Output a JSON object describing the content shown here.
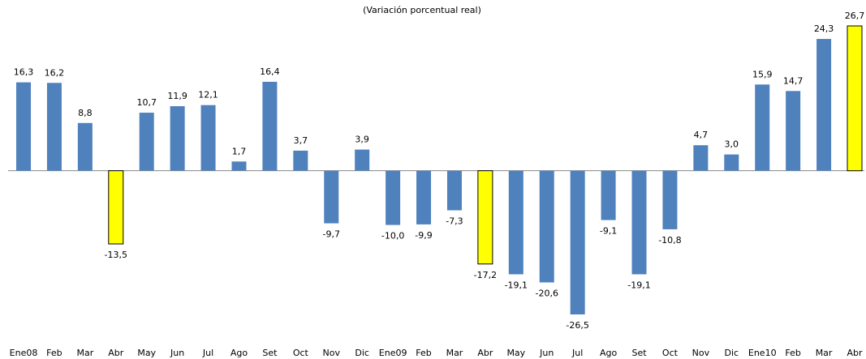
{
  "chart_data": {
    "type": "bar",
    "subtitle": "(Variación porcentual real)",
    "categories": [
      "Ene08",
      "Feb",
      "Mar",
      "Abr",
      "May",
      "Jun",
      "Jul",
      "Ago",
      "Set",
      "Oct",
      "Nov",
      "Dic",
      "Ene09",
      "Feb",
      "Mar",
      "Abr",
      "May",
      "Jun",
      "Jul",
      "Ago",
      "Set",
      "Oct",
      "Nov",
      "Dic",
      "Ene10",
      "Feb",
      "Mar",
      "Abr"
    ],
    "values": [
      16.3,
      16.2,
      8.8,
      -13.5,
      10.7,
      11.9,
      12.1,
      1.7,
      16.4,
      3.7,
      -9.7,
      3.9,
      -10.0,
      -9.9,
      -7.3,
      -17.2,
      -19.1,
      -20.6,
      -26.5,
      -9.1,
      -19.1,
      -10.8,
      4.7,
      3.0,
      15.9,
      14.7,
      24.3,
      26.7
    ],
    "value_labels": [
      "16,3",
      "16,2",
      "8,8",
      "-13,5",
      "10,7",
      "11,9",
      "12,1",
      "1,7",
      "16,4",
      "3,7",
      "-9,7",
      "3,9",
      "-10,0",
      "-9,9",
      "-7,3",
      "-17,2",
      "-19,1",
      "-20,6",
      "-26,5",
      "-9,1",
      "-19,1",
      "-10,8",
      "4,7",
      "3,0",
      "15,9",
      "14,7",
      "24,3",
      "26,7"
    ],
    "colors": [
      "#4f81bd",
      "#4f81bd",
      "#4f81bd",
      "#ffff00",
      "#4f81bd",
      "#4f81bd",
      "#4f81bd",
      "#4f81bd",
      "#4f81bd",
      "#4f81bd",
      "#4f81bd",
      "#4f81bd",
      "#4f81bd",
      "#4f81bd",
      "#4f81bd",
      "#ffff00",
      "#4f81bd",
      "#4f81bd",
      "#4f81bd",
      "#4f81bd",
      "#4f81bd",
      "#4f81bd",
      "#4f81bd",
      "#4f81bd",
      "#4f81bd",
      "#4f81bd",
      "#4f81bd",
      "#ffff00"
    ]
  }
}
